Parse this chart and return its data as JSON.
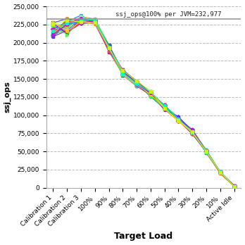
{
  "x_labels": [
    "Calibration 1",
    "Calibration 2",
    "Calibration 3",
    "100%",
    "90%",
    "80%",
    "70%",
    "60%",
    "50%",
    "40%",
    "30%",
    "20%",
    "10%",
    "Active Idle"
  ],
  "reference_line_y": 232977,
  "reference_label": "ssj_ops@100% per JVM=232,977",
  "ylabel": "ssj_ops",
  "xlabel": "Target Load",
  "ylim": [
    0,
    250000
  ],
  "yticks": [
    0,
    25000,
    50000,
    75000,
    100000,
    125000,
    150000,
    175000,
    200000,
    225000,
    250000
  ],
  "background_color": "#ffffff",
  "grid_color": "#bbbbbb",
  "num_series": 30,
  "base_values": [
    218000,
    222000,
    232000,
    229000,
    192000,
    159000,
    144000,
    129000,
    111000,
    95000,
    77000,
    50000,
    21000,
    2500
  ],
  "spread": [
    10000,
    12000,
    6000,
    4000,
    5000,
    4000,
    4000,
    4000,
    3500,
    3500,
    3000,
    2500,
    1500,
    800
  ],
  "colors": [
    "#ff0000",
    "#00bb00",
    "#0000ff",
    "#ff00ff",
    "#00cccc",
    "#ffaa00",
    "#aa00ff",
    "#00ff00",
    "#ff6600",
    "#0066ff",
    "#ff0066",
    "#66cc00",
    "#6600ff",
    "#cc3333",
    "#33cc33",
    "#3333cc",
    "#ffff00",
    "#00ccff",
    "#ff00aa",
    "#88ff88",
    "#ff8800",
    "#8800ff",
    "#00ff88",
    "#ff4444",
    "#4444ff",
    "#44ff44",
    "#ffcc00",
    "#cc00ff",
    "#00ffcc",
    "#ccff00"
  ]
}
